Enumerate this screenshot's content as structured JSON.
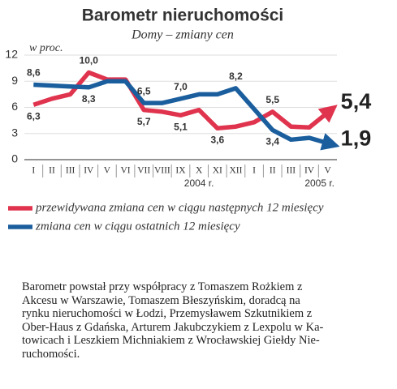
{
  "chart_data": {
    "type": "line",
    "title": "Barometr nieruchomości",
    "subtitle": "Domy – zmiany cen",
    "y_label": "w proc.",
    "categories": [
      "I",
      "II",
      "III",
      "IV",
      "V",
      "VI",
      "VII",
      "VIII",
      "IX",
      "X",
      "XI",
      "XII",
      "I",
      "II",
      "III",
      "IV",
      "V"
    ],
    "x_group_labels": [
      "2004 r.",
      "2005 r."
    ],
    "series": [
      {
        "name": "przewidywana zmiana cen w ciągu następnych 12 miesięcy",
        "color": "#e0344e",
        "values": [
          6.3,
          7.0,
          7.5,
          10.0,
          9.2,
          9.2,
          5.7,
          5.5,
          5.1,
          5.7,
          3.6,
          3.8,
          4.3,
          5.5,
          3.8,
          3.7,
          5.4
        ],
        "value_labels": [
          "6,3",
          null,
          null,
          "10,0",
          null,
          null,
          "5,7",
          null,
          "5,1",
          null,
          "3,6",
          null,
          null,
          "5,5",
          null,
          null,
          "5,4"
        ]
      },
      {
        "name": "zmiana cen w ciągu ostatnich 12 miesięcy",
        "color": "#1b5e9e",
        "values": [
          8.6,
          8.5,
          8.4,
          8.3,
          9.0,
          9.0,
          6.5,
          6.5,
          7.0,
          7.5,
          7.5,
          8.2,
          5.8,
          3.4,
          2.3,
          2.5,
          1.9
        ],
        "value_labels": [
          "8,6",
          null,
          null,
          "8,3",
          null,
          null,
          "6,5",
          null,
          "7,0",
          null,
          null,
          "8,2",
          null,
          "3,4",
          null,
          null,
          "1,9"
        ]
      }
    ],
    "ylim": [
      0,
      12
    ],
    "yticks": [
      0,
      3,
      6,
      9,
      12
    ],
    "grid": true
  },
  "caption": [
    "Barometr powstał przy współpracy z Tomaszem Rożkiem z",
    "Akcesu w Warszawie, Tomaszem Błeszyńskim, doradcą na",
    "rynku nieruchomości w Łodzi, Przemysławem Szkutnikiem z",
    "Ober-Haus z Gdańska, Arturem Jakubczykiem z Lexpolu w Ka-",
    "towicach i Leszkiem Michniakiem z Wrocławskiej Giełdy Nie-",
    "ruchomości."
  ]
}
